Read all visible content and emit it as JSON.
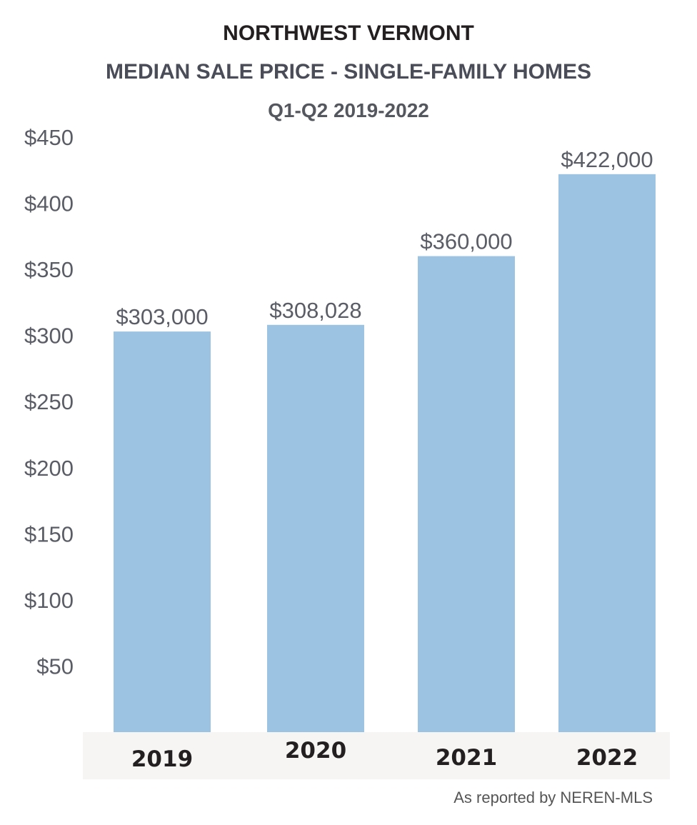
{
  "colors": {
    "bar": "#9dc3e3",
    "axis_band": "#f6f5f3",
    "text_dark": "#231f20",
    "text_gray": "#5b5d66"
  },
  "chart_data": {
    "type": "bar",
    "title": "NORTHWEST VERMONT",
    "subtitle": "MEDIAN SALE PRICE - SINGLE-FAMILY HOMES",
    "period": "Q1-Q2 2019-2022",
    "categories": [
      "2019",
      "2020",
      "2021",
      "2022"
    ],
    "values": [
      303,
      308.028,
      360,
      422
    ],
    "value_labels": [
      "$303,000",
      "$308,028",
      "$360,000",
      "$422,000"
    ],
    "y_ticks": [
      "$50",
      "$100",
      "$150",
      "$200",
      "$250",
      "$300",
      "$350",
      "$400",
      "$450"
    ],
    "y_tick_values": [
      50,
      100,
      150,
      200,
      250,
      300,
      350,
      400,
      450
    ],
    "ylim": [
      0,
      450
    ],
    "grid": false,
    "source": "As reported by NEREN-MLS"
  }
}
